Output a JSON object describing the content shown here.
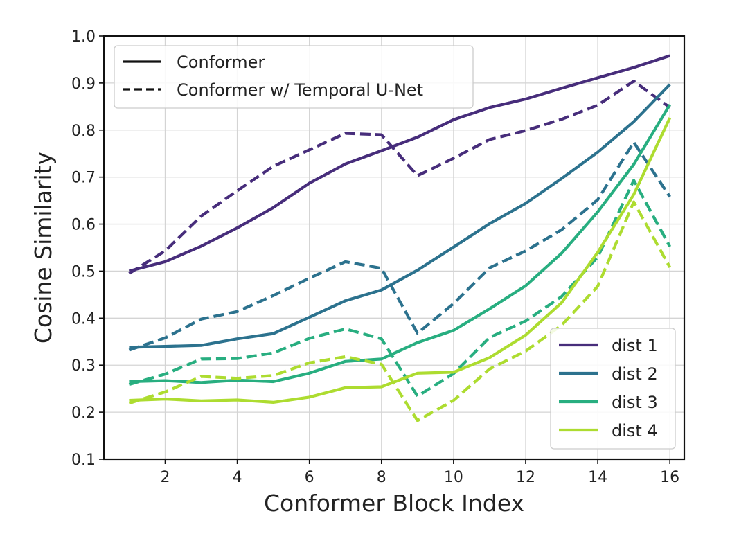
{
  "chart_data": {
    "type": "line",
    "title": "",
    "xlabel": "Conformer Block Index",
    "ylabel": "Cosine Similarity",
    "xlim": [
      0.3,
      16.4
    ],
    "ylim": [
      0.1,
      1.0
    ],
    "xticks": [
      2,
      4,
      6,
      8,
      10,
      12,
      14,
      16
    ],
    "yticks": [
      0.1,
      0.2,
      0.3,
      0.4,
      0.5,
      0.6,
      0.7,
      0.8,
      0.9,
      1.0
    ],
    "xtick_labels": [
      "2",
      "4",
      "6",
      "8",
      "10",
      "12",
      "14",
      "16"
    ],
    "ytick_labels": [
      "0.1",
      "0.2",
      "0.3",
      "0.4",
      "0.5",
      "0.6",
      "0.7",
      "0.8",
      "0.9",
      "1.0"
    ],
    "grid": true,
    "x": [
      1,
      2,
      3,
      4,
      5,
      6,
      7,
      8,
      9,
      10,
      11,
      12,
      13,
      14,
      15,
      16
    ],
    "style_legend": {
      "position": "upper-left",
      "entries": [
        {
          "label": "Conformer",
          "dash": "solid"
        },
        {
          "label": "Conformer w/ Temporal U-Net",
          "dash": "dashed"
        }
      ]
    },
    "color_legend": {
      "position": "lower-right",
      "entries": [
        {
          "label": "dist 1",
          "color": "#472d7b"
        },
        {
          "label": "dist 2",
          "color": "#2c728e"
        },
        {
          "label": "dist 3",
          "color": "#28ae80"
        },
        {
          "label": "dist 4",
          "color": "#addc30"
        }
      ]
    },
    "series": [
      {
        "group": "dist 1",
        "variant": "Conformer",
        "color": "#472d7b",
        "dash": "solid",
        "values": [
          0.5,
          0.52,
          0.553,
          0.592,
          0.635,
          0.687,
          0.728,
          0.756,
          0.785,
          0.822,
          0.848,
          0.866,
          0.889,
          0.911,
          0.933,
          0.958
        ]
      },
      {
        "group": "dist 1",
        "variant": "Conformer w/ Temporal U-Net",
        "color": "#472d7b",
        "dash": "dashed",
        "values": [
          0.495,
          0.543,
          0.617,
          0.671,
          0.723,
          0.758,
          0.793,
          0.79,
          0.703,
          0.74,
          0.78,
          0.799,
          0.823,
          0.853,
          0.904,
          0.848
        ]
      },
      {
        "group": "dist 2",
        "variant": "Conformer",
        "color": "#2c728e",
        "dash": "solid",
        "values": [
          0.338,
          0.34,
          0.342,
          0.356,
          0.367,
          0.402,
          0.437,
          0.46,
          0.502,
          0.551,
          0.601,
          0.644,
          0.697,
          0.753,
          0.818,
          0.897
        ]
      },
      {
        "group": "dist 2",
        "variant": "Conformer w/ Temporal U-Net",
        "color": "#2c728e",
        "dash": "dashed",
        "values": [
          0.332,
          0.358,
          0.398,
          0.414,
          0.448,
          0.485,
          0.52,
          0.506,
          0.368,
          0.431,
          0.507,
          0.543,
          0.588,
          0.652,
          0.774,
          0.658
        ]
      },
      {
        "group": "dist 3",
        "variant": "Conformer",
        "color": "#28ae80",
        "dash": "solid",
        "values": [
          0.265,
          0.267,
          0.263,
          0.268,
          0.265,
          0.283,
          0.308,
          0.313,
          0.348,
          0.374,
          0.42,
          0.469,
          0.538,
          0.626,
          0.727,
          0.854
        ]
      },
      {
        "group": "dist 3",
        "variant": "Conformer w/ Temporal U-Net",
        "color": "#28ae80",
        "dash": "dashed",
        "values": [
          0.259,
          0.281,
          0.313,
          0.314,
          0.326,
          0.357,
          0.377,
          0.356,
          0.234,
          0.282,
          0.359,
          0.394,
          0.446,
          0.53,
          0.693,
          0.552
        ]
      },
      {
        "group": "dist 4",
        "variant": "Conformer",
        "color": "#addc30",
        "dash": "solid",
        "values": [
          0.225,
          0.228,
          0.224,
          0.226,
          0.221,
          0.232,
          0.252,
          0.254,
          0.283,
          0.285,
          0.316,
          0.364,
          0.433,
          0.54,
          0.663,
          0.826
        ]
      },
      {
        "group": "dist 4",
        "variant": "Conformer w/ Temporal U-Net",
        "color": "#addc30",
        "dash": "dashed",
        "values": [
          0.219,
          0.243,
          0.276,
          0.272,
          0.278,
          0.305,
          0.318,
          0.302,
          0.182,
          0.225,
          0.292,
          0.33,
          0.385,
          0.468,
          0.647,
          0.508
        ]
      }
    ]
  }
}
